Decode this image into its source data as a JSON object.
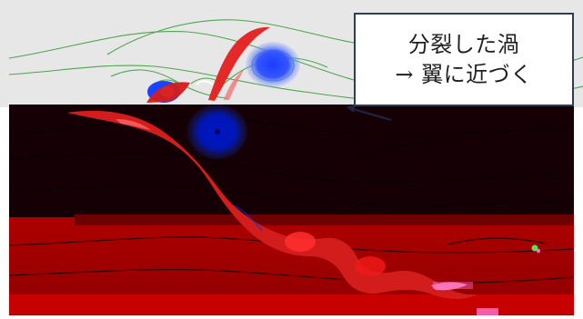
{
  "callout": {
    "line1": "分裂した渦",
    "line2": "→ 翼に近づく"
  },
  "colors": {
    "background_top": "#e6e6e6",
    "dark_overlay": "#170006",
    "red_overlay": "#a00000",
    "vortex_blue": "#1f3fbf",
    "vortex_red": "#d61e1e",
    "streamline_green": "#3d9f3d",
    "callout_border": "#2f3e53",
    "arrow_dark": "#1b2740"
  }
}
